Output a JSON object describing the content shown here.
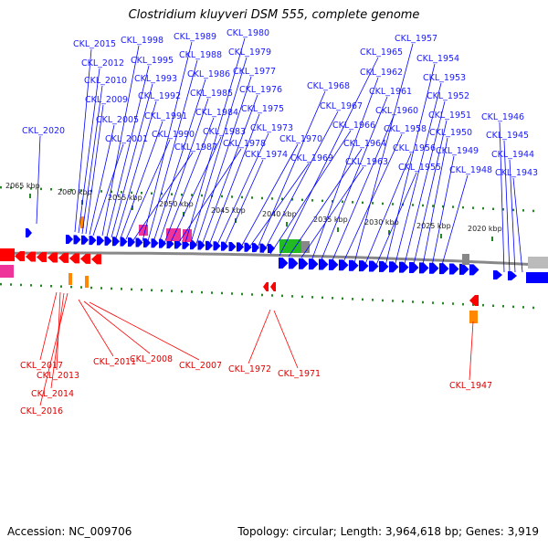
{
  "title": "Clostridium kluyveri DSM 555, complete genome",
  "footer": {
    "accession": "Accession: NC_009706",
    "summary": "Topology: circular; Length: 3,964,618 bp; Genes: 3,919"
  },
  "colors": {
    "forward": "#0000ff",
    "reverse": "#ff0000",
    "backbone": "#888888",
    "scale_ticks": "#228822",
    "rrna_green": "#22bb22",
    "pink": "#ee3399",
    "orange": "#ff8800",
    "gray": "#888888"
  },
  "scale_ticks": [
    "2065 kbp",
    "2060 kbp",
    "2055 kbp",
    "2050 kbp",
    "2045 kbp",
    "2040 kbp",
    "2035 kbp",
    "2030 kbp",
    "2025 kbp",
    "2020 kbp"
  ],
  "forward_labels": [
    "CKL_2020",
    "CKL_2015",
    "CKL_2012",
    "CKL_2010",
    "CKL_2009",
    "CKL_2005",
    "CKL_2001",
    "CKL_1998",
    "CKL_1995",
    "CKL_1993",
    "CKL_1992",
    "CKL_1991",
    "CKL_1990",
    "CKL_1987",
    "CKL_1989",
    "CKL_1988",
    "CKL_1986",
    "CKL_1985",
    "CKL_1984",
    "CKL_1983",
    "CKL_1978",
    "CKL_1980",
    "CKL_1979",
    "CKL_1977",
    "CKL_1976",
    "CKL_1975",
    "CKL_1973",
    "CKL_1974",
    "CKL_1970",
    "CKL_1969",
    "CKL_1968",
    "CKL_1967",
    "CKL_1966",
    "CKL_1965",
    "CKL_1964",
    "CKL_1963",
    "CKL_1962",
    "CKL_1961",
    "CKL_1960",
    "CKL_1958",
    "CKL_1957",
    "CKL_1956",
    "CKL_1955",
    "CKL_1954",
    "CKL_1953",
    "CKL_1952",
    "CKL_1951",
    "CKL_1950",
    "CKL_1949",
    "CKL_1948",
    "CKL_1946",
    "CKL_1945",
    "CKL_1944",
    "CKL_1943"
  ],
  "reverse_labels": [
    "CKL_2017",
    "CKL_2013",
    "CKL_2014",
    "CKL_2016",
    "CKL_2011",
    "CKL_2008",
    "CKL_2007",
    "CKL_1972",
    "CKL_1971",
    "CKL_1947"
  ]
}
